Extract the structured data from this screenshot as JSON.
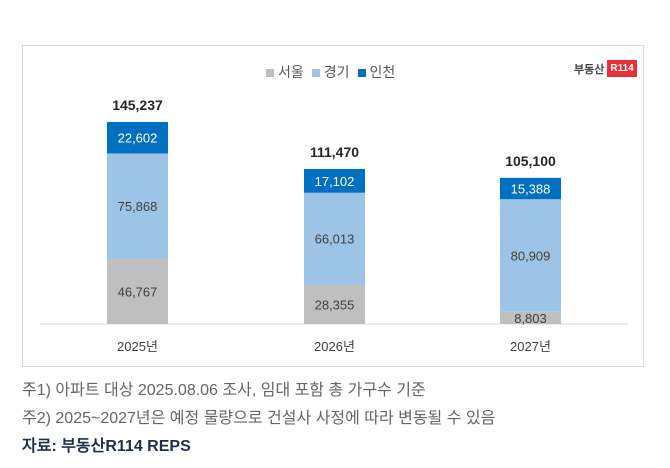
{
  "chart_data": {
    "type": "bar",
    "stacked": true,
    "categories": [
      "2025년",
      "2026년",
      "2027년"
    ],
    "series": [
      {
        "name": "서울",
        "color": "#bfbfbf",
        "values": [
          46767,
          28355,
          8803
        ]
      },
      {
        "name": "경기",
        "color": "#9dc3e6",
        "values": [
          75868,
          66013,
          80909
        ]
      },
      {
        "name": "인천",
        "color": "#0070c0",
        "values": [
          22602,
          17102,
          15388
        ]
      }
    ],
    "totals": [
      145237,
      111470,
      105100
    ],
    "legend_position": "top",
    "ylim": [
      0,
      150000
    ]
  },
  "logo": {
    "text": "부동산",
    "badge": "R114"
  },
  "notes": [
    "주1) 아파트 대상 2025.08.06 조사, 임대 포함 총 가구수 기준",
    "주2) 2025~2027년은 예정 물량으로 건설사 사정에 따라 변동될 수 있음"
  ],
  "source": "자료: 부동산R114 REPS"
}
